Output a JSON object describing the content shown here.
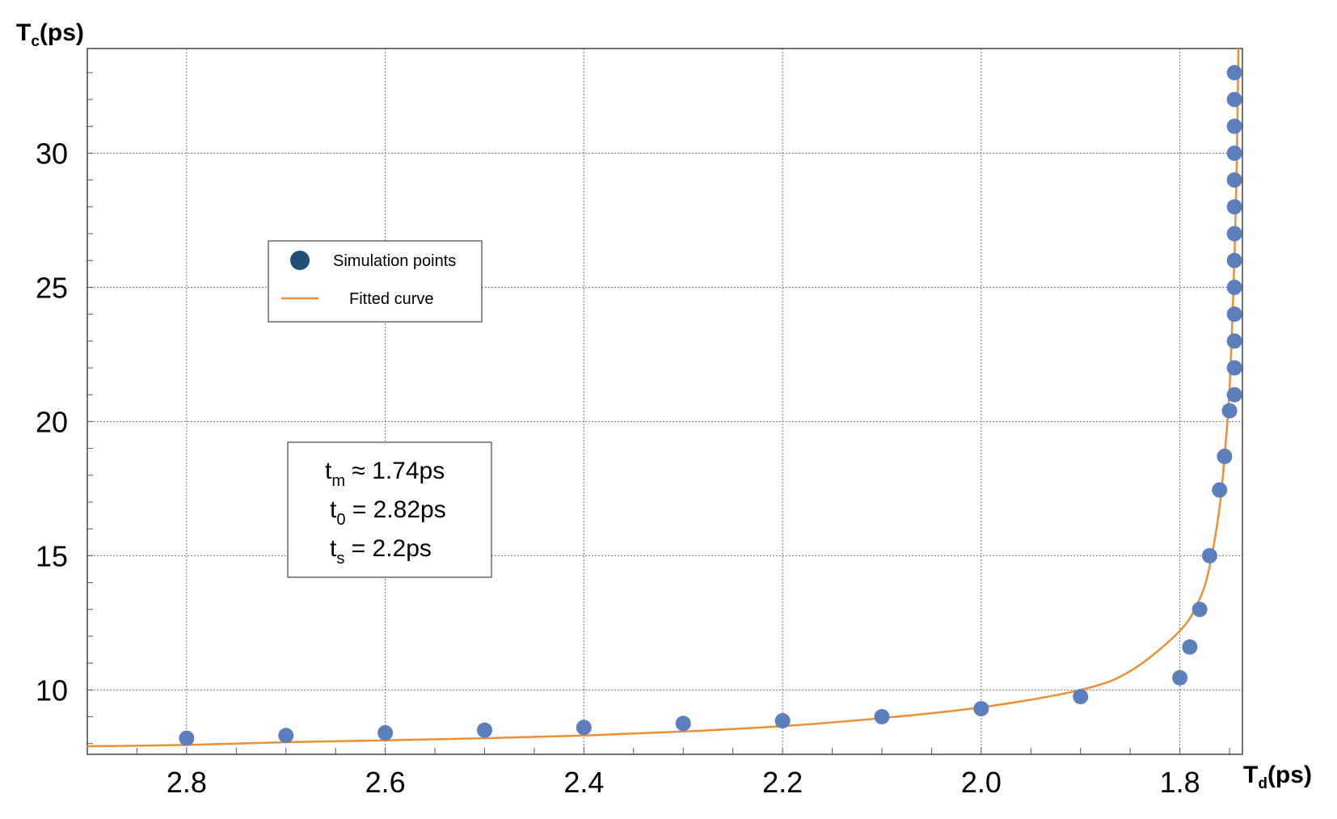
{
  "chart_data": {
    "type": "scatter",
    "x_axis": {
      "label": {
        "main": "T",
        "sub": "d",
        "tail": "(ps)"
      },
      "ticks": [
        "2.8",
        "2.6",
        "2.4",
        "2.2",
        "2.0",
        "1.8"
      ],
      "tick_values": [
        2.8,
        2.6,
        2.4,
        2.2,
        2.0,
        1.8
      ],
      "range": [
        2.9,
        1.737
      ],
      "reversed": true
    },
    "y_axis": {
      "label": {
        "main": "T",
        "sub": "c",
        "tail": "(ps)"
      },
      "ticks": [
        "10",
        "15",
        "20",
        "25",
        "30"
      ],
      "tick_values": [
        10,
        15,
        20,
        25,
        30
      ],
      "range": [
        7.6,
        33.9
      ]
    },
    "grid": true,
    "legend": {
      "placement": "upper-left",
      "entries": [
        {
          "label": "Simulation points",
          "marker": "circle",
          "color": "#1f4e79"
        },
        {
          "label": "Fitted curve",
          "marker": "line",
          "color": "#ed8f35"
        }
      ]
    },
    "annotation": {
      "lines": [
        {
          "main": "t",
          "sub": "m",
          "rest": " ≈ 1.74ps"
        },
        {
          "main": "t",
          "sub": "0",
          "rest": " = 2.82ps"
        },
        {
          "main": "t",
          "sub": "s",
          "rest": " = 2.2ps"
        }
      ]
    },
    "series": [
      {
        "name": "Simulation points",
        "kind": "scatter",
        "color": "#5b7fbc",
        "points": [
          [
            2.8,
            8.2
          ],
          [
            2.7,
            8.3
          ],
          [
            2.6,
            8.4
          ],
          [
            2.5,
            8.5
          ],
          [
            2.4,
            8.6
          ],
          [
            2.3,
            8.75
          ],
          [
            2.2,
            8.85
          ],
          [
            2.1,
            9.0
          ],
          [
            2.0,
            9.3
          ],
          [
            1.9,
            9.75
          ],
          [
            1.8,
            10.45
          ],
          [
            1.79,
            11.6
          ],
          [
            1.78,
            13.0
          ],
          [
            1.77,
            15.0
          ],
          [
            1.76,
            17.45
          ],
          [
            1.755,
            18.7
          ],
          [
            1.75,
            20.4
          ],
          [
            1.745,
            21.0
          ],
          [
            1.745,
            22.0
          ],
          [
            1.745,
            23.0
          ],
          [
            1.745,
            24.0
          ],
          [
            1.745,
            25.0
          ],
          [
            1.745,
            26.0
          ],
          [
            1.745,
            27.0
          ],
          [
            1.745,
            28.0
          ],
          [
            1.745,
            29.0
          ],
          [
            1.745,
            30.0
          ],
          [
            1.745,
            31.0
          ],
          [
            1.745,
            32.0
          ],
          [
            1.745,
            33.0
          ]
        ]
      },
      {
        "name": "Fitted curve",
        "kind": "line",
        "color": "#ed8f35",
        "points": [
          [
            2.9,
            7.9
          ],
          [
            2.8,
            7.95
          ],
          [
            2.7,
            8.05
          ],
          [
            2.6,
            8.12
          ],
          [
            2.5,
            8.2
          ],
          [
            2.4,
            8.3
          ],
          [
            2.3,
            8.45
          ],
          [
            2.2,
            8.65
          ],
          [
            2.1,
            8.95
          ],
          [
            2.0,
            9.35
          ],
          [
            1.9,
            10.0
          ],
          [
            1.85,
            10.7
          ],
          [
            1.8,
            12.2
          ],
          [
            1.78,
            13.4
          ],
          [
            1.77,
            14.6
          ],
          [
            1.76,
            16.8
          ],
          [
            1.755,
            18.7
          ],
          [
            1.75,
            21.2
          ],
          [
            1.746,
            25.0
          ],
          [
            1.743,
            29.0
          ],
          [
            1.741,
            34.0
          ]
        ]
      }
    ]
  }
}
